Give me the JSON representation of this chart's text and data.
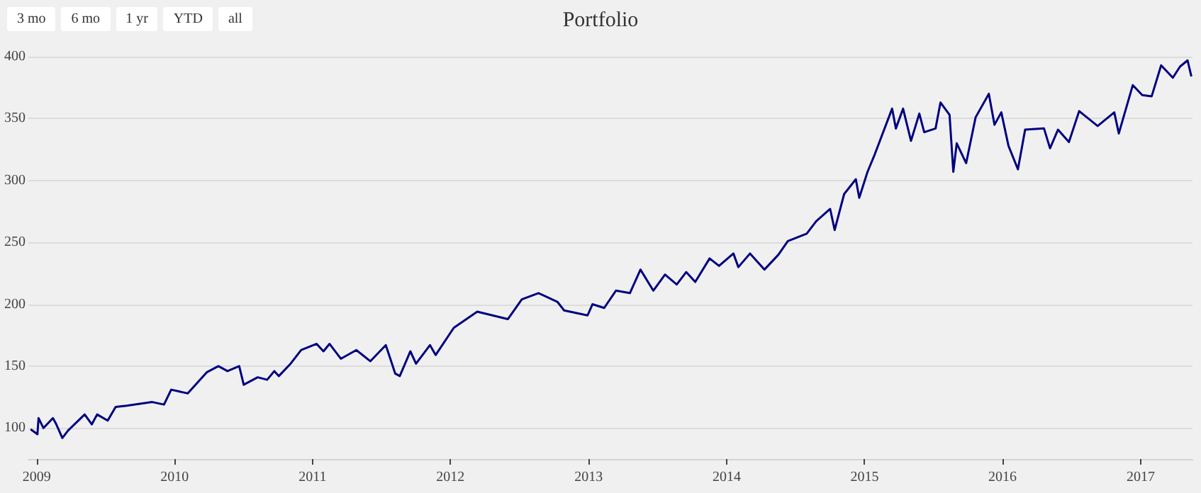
{
  "chart_data": {
    "type": "line",
    "title": "Portfolio",
    "annotations": [
      "3 mo",
      "6 mo",
      "1 yr",
      "YTD",
      "all"
    ],
    "xlim": [
      "2008-12-10",
      "2017-05-18"
    ],
    "xticks": [
      "2009",
      "2010",
      "2011",
      "2012",
      "2013",
      "2014",
      "2015",
      "2016",
      "2017"
    ],
    "ylim": [
      75,
      400
    ],
    "yticks": [
      100,
      150,
      200,
      250,
      300,
      350,
      400
    ],
    "grid": "y",
    "marker": "none",
    "line_style": "solid",
    "x": [
      "2008-12-16",
      "2009-01-03",
      "2009-01-06",
      "2009-01-19",
      "2009-02-13",
      "2009-02-22",
      "2009-03-10",
      "2009-03-25",
      "2009-05-08",
      "2009-05-27",
      "2009-06-10",
      "2009-07-08",
      "2009-07-29",
      "2009-08-27",
      "2009-11-03",
      "2009-12-04",
      "2009-12-23",
      "2010-02-05",
      "2010-03-27",
      "2010-04-27",
      "2010-05-21",
      "2010-06-21",
      "2010-07-03",
      "2010-08-09",
      "2010-09-03",
      "2010-09-22",
      "2010-10-04",
      "2010-11-04",
      "2010-12-02",
      "2011-01-12",
      "2011-01-30",
      "2011-02-15",
      "2011-03-17",
      "2011-04-27",
      "2011-06-03",
      "2011-07-14",
      "2011-08-08",
      "2011-08-20",
      "2011-09-17",
      "2011-10-02",
      "2011-11-08",
      "2011-11-23",
      "2012-01-10",
      "2012-03-12",
      "2012-06-01",
      "2012-07-08",
      "2012-08-21",
      "2012-10-10",
      "2012-10-28",
      "2012-12-29",
      "2013-01-11",
      "2013-02-11",
      "2013-03-14",
      "2013-04-20",
      "2013-05-18",
      "2013-06-21",
      "2013-07-22",
      "2013-08-22",
      "2013-09-16",
      "2013-10-10",
      "2013-11-17",
      "2013-12-12",
      "2014-01-19",
      "2014-02-01",
      "2014-03-04",
      "2014-04-11",
      "2014-05-18",
      "2014-06-12",
      "2014-08-01",
      "2014-08-26",
      "2014-10-02",
      "2014-10-14",
      "2014-11-08",
      "2014-12-09",
      "2014-12-18",
      "2015-01-09",
      "2015-01-28",
      "2015-03-15",
      "2015-03-25",
      "2015-04-13",
      "2015-05-04",
      "2015-05-26",
      "2015-06-08",
      "2015-07-08",
      "2015-07-21",
      "2015-08-14",
      "2015-08-24",
      "2015-09-02",
      "2015-09-27",
      "2015-10-22",
      "2015-11-26",
      "2015-12-11",
      "2015-12-29",
      "2016-01-17",
      "2016-02-11",
      "2016-03-01",
      "2016-04-20",
      "2016-05-06",
      "2016-05-27",
      "2016-06-25",
      "2016-07-22",
      "2016-09-09",
      "2016-10-23",
      "2016-11-04",
      "2016-12-11",
      "2017-01-05",
      "2017-01-30",
      "2017-02-24",
      "2017-03-27",
      "2017-04-15",
      "2017-05-05",
      "2017-05-15"
    ],
    "series": [
      {
        "color": "#000080",
        "values": [
          99,
          95,
          108,
          100,
          108,
          103,
          92,
          98,
          111,
          103,
          111,
          106,
          117,
          118,
          121,
          119,
          131,
          128,
          145,
          150,
          146,
          150,
          135,
          141,
          139,
          146,
          142,
          152,
          163,
          168,
          162,
          168,
          156,
          163,
          154,
          167,
          144,
          142,
          162,
          152,
          167,
          159,
          181,
          194,
          188,
          204,
          209,
          202,
          195,
          191,
          200,
          197,
          211,
          209,
          228,
          211,
          224,
          216,
          226,
          218,
          237,
          231,
          241,
          230,
          241,
          228,
          240,
          251,
          257,
          267,
          277,
          260,
          289,
          301,
          286,
          307,
          321,
          358,
          342,
          358,
          332,
          354,
          339,
          342,
          363,
          353,
          307,
          330,
          314,
          351,
          370,
          345,
          355,
          328,
          309,
          341,
          342,
          326,
          341,
          331,
          356,
          344,
          355,
          338,
          377,
          369,
          368,
          393,
          383,
          392,
          397,
          384
        ]
      }
    ]
  }
}
